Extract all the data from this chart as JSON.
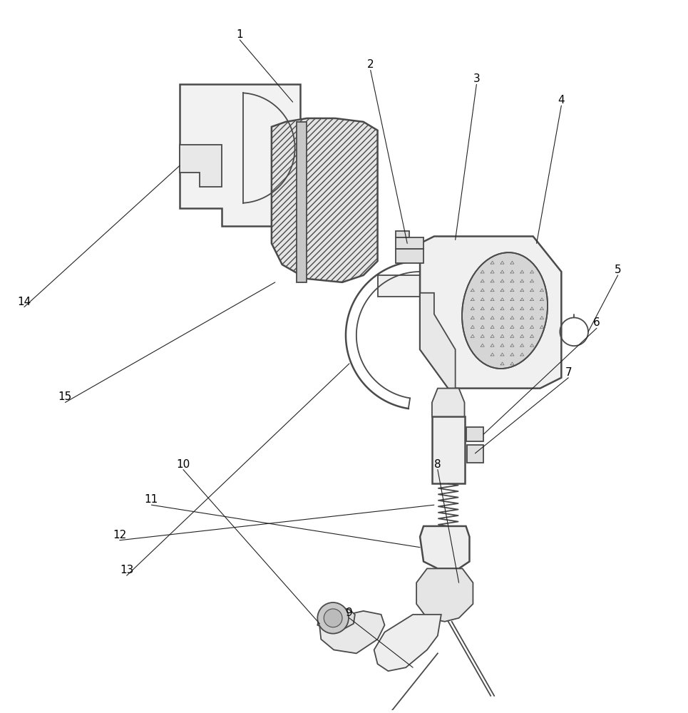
{
  "background_color": "#ffffff",
  "lc": "#4a4a4a",
  "lc_thin": "#666666",
  "lw_main": 1.3,
  "lw_thin": 0.8,
  "fig_width": 9.65,
  "fig_height": 10.0,
  "ann_color": "#222222",
  "ann_lw": 0.8,
  "label_fontsize": 11
}
